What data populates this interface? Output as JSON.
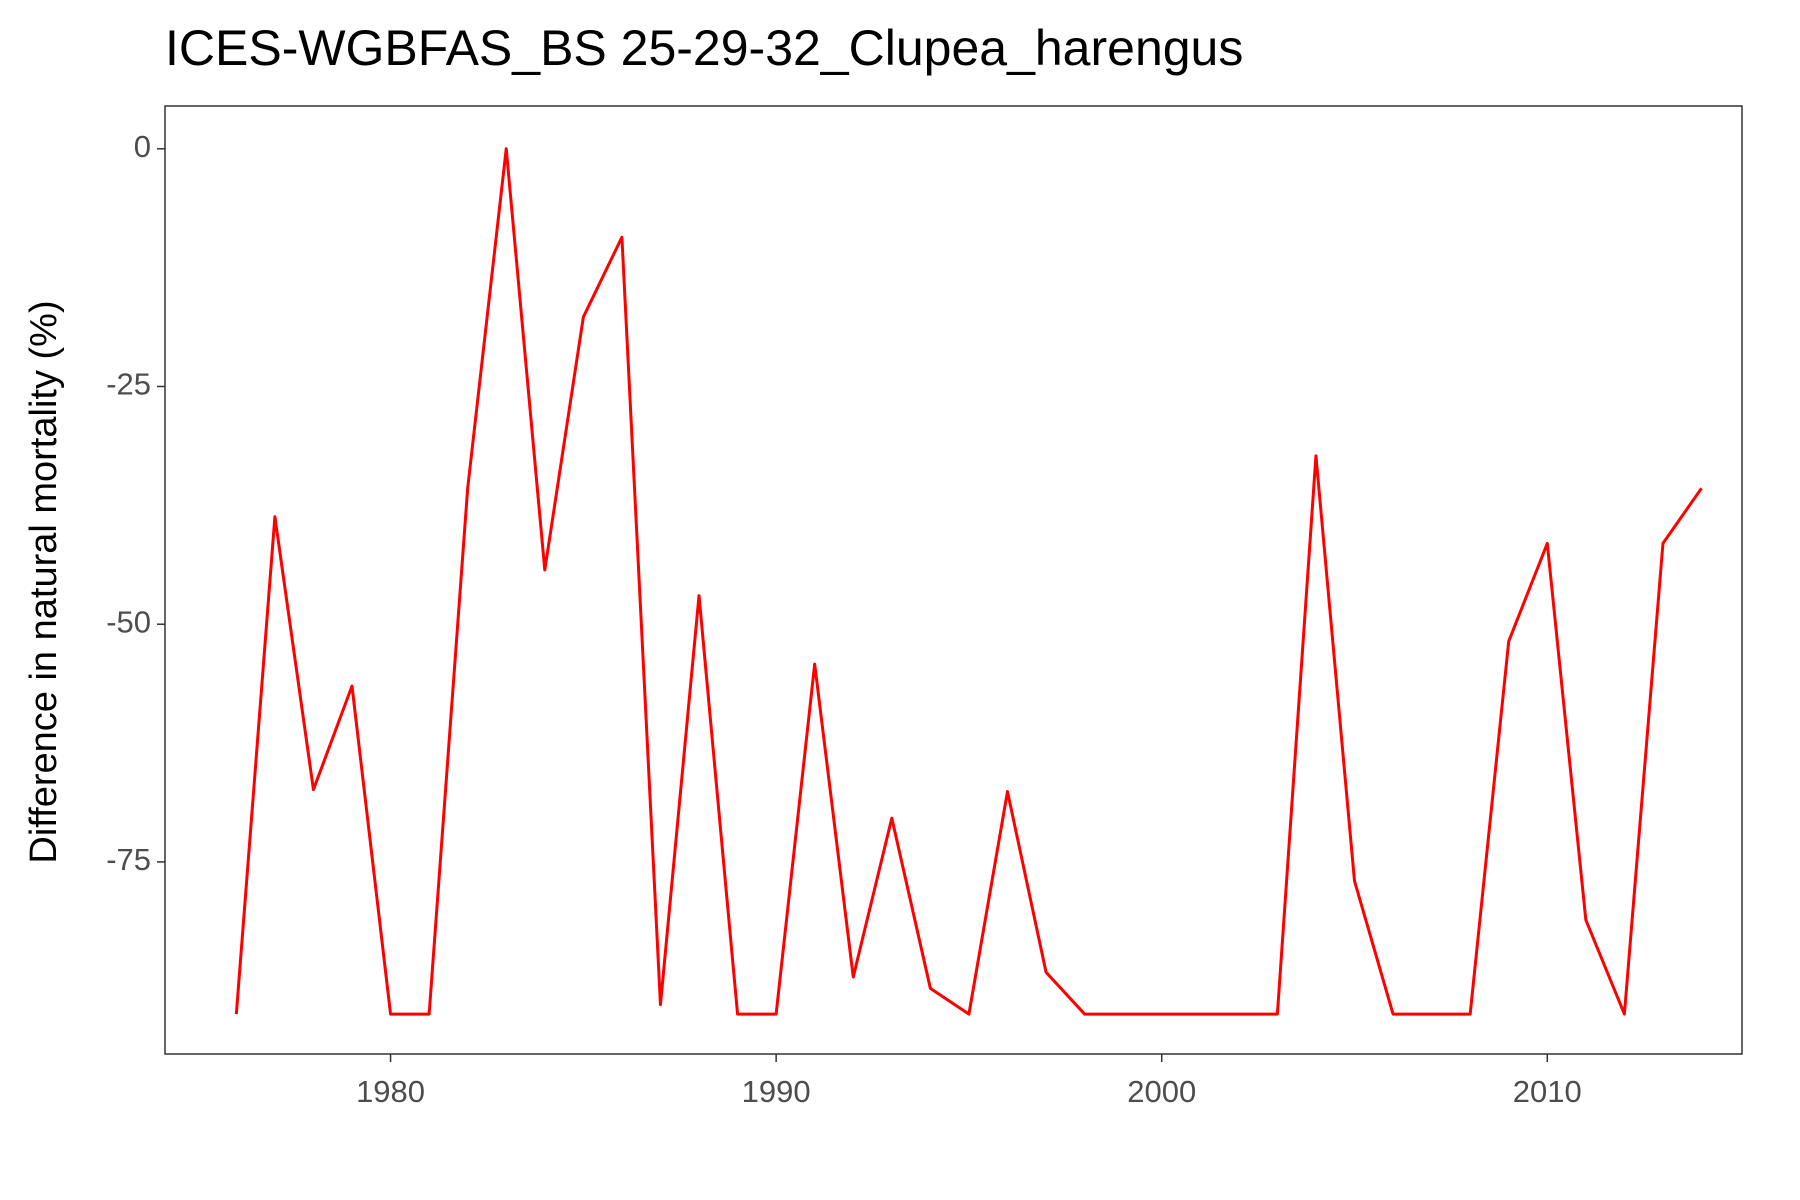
{
  "chart_data": {
    "type": "line",
    "title": "ICES-WGBFAS_BS 25-29-32_Clupea_harengus",
    "y_label": "Difference in natural mortality (%)",
    "x": [
      1976,
      1977,
      1978,
      1979,
      1980,
      1981,
      1982,
      1983,
      1984,
      1985,
      1986,
      1987,
      1988,
      1989,
      1990,
      1991,
      1992,
      1993,
      1994,
      1995,
      1996,
      1997,
      1998,
      1999,
      2000,
      2001,
      2002,
      2003,
      2004,
      2005,
      2006,
      2007,
      2008,
      2009,
      2010,
      2011,
      2012,
      2013,
      2014
    ],
    "series": [
      {
        "color": "#ff0000",
        "values": [
          -91,
          -38.7,
          -67.4,
          -56.5,
          -91,
          -91,
          -35.7,
          0,
          -44.3,
          -17.7,
          -9.3,
          -90,
          -47,
          -91,
          -91,
          -54.2,
          -87.1,
          -70.4,
          -88.3,
          -91,
          -67.6,
          -86.6,
          -91,
          -91,
          -91,
          -91,
          -91,
          -91,
          -32.3,
          -77,
          -91,
          -91,
          -91,
          -51.8,
          -41.5,
          -81.1,
          -91,
          -41.5,
          -35.7
        ]
      }
    ],
    "xlim": [
      1974.15,
      2015.05
    ],
    "xticks": [
      1980,
      1990,
      2000,
      2010
    ],
    "ylim": [
      -95.2,
      4.5
    ],
    "yticks": [
      -75,
      -50,
      -25,
      0
    ]
  }
}
